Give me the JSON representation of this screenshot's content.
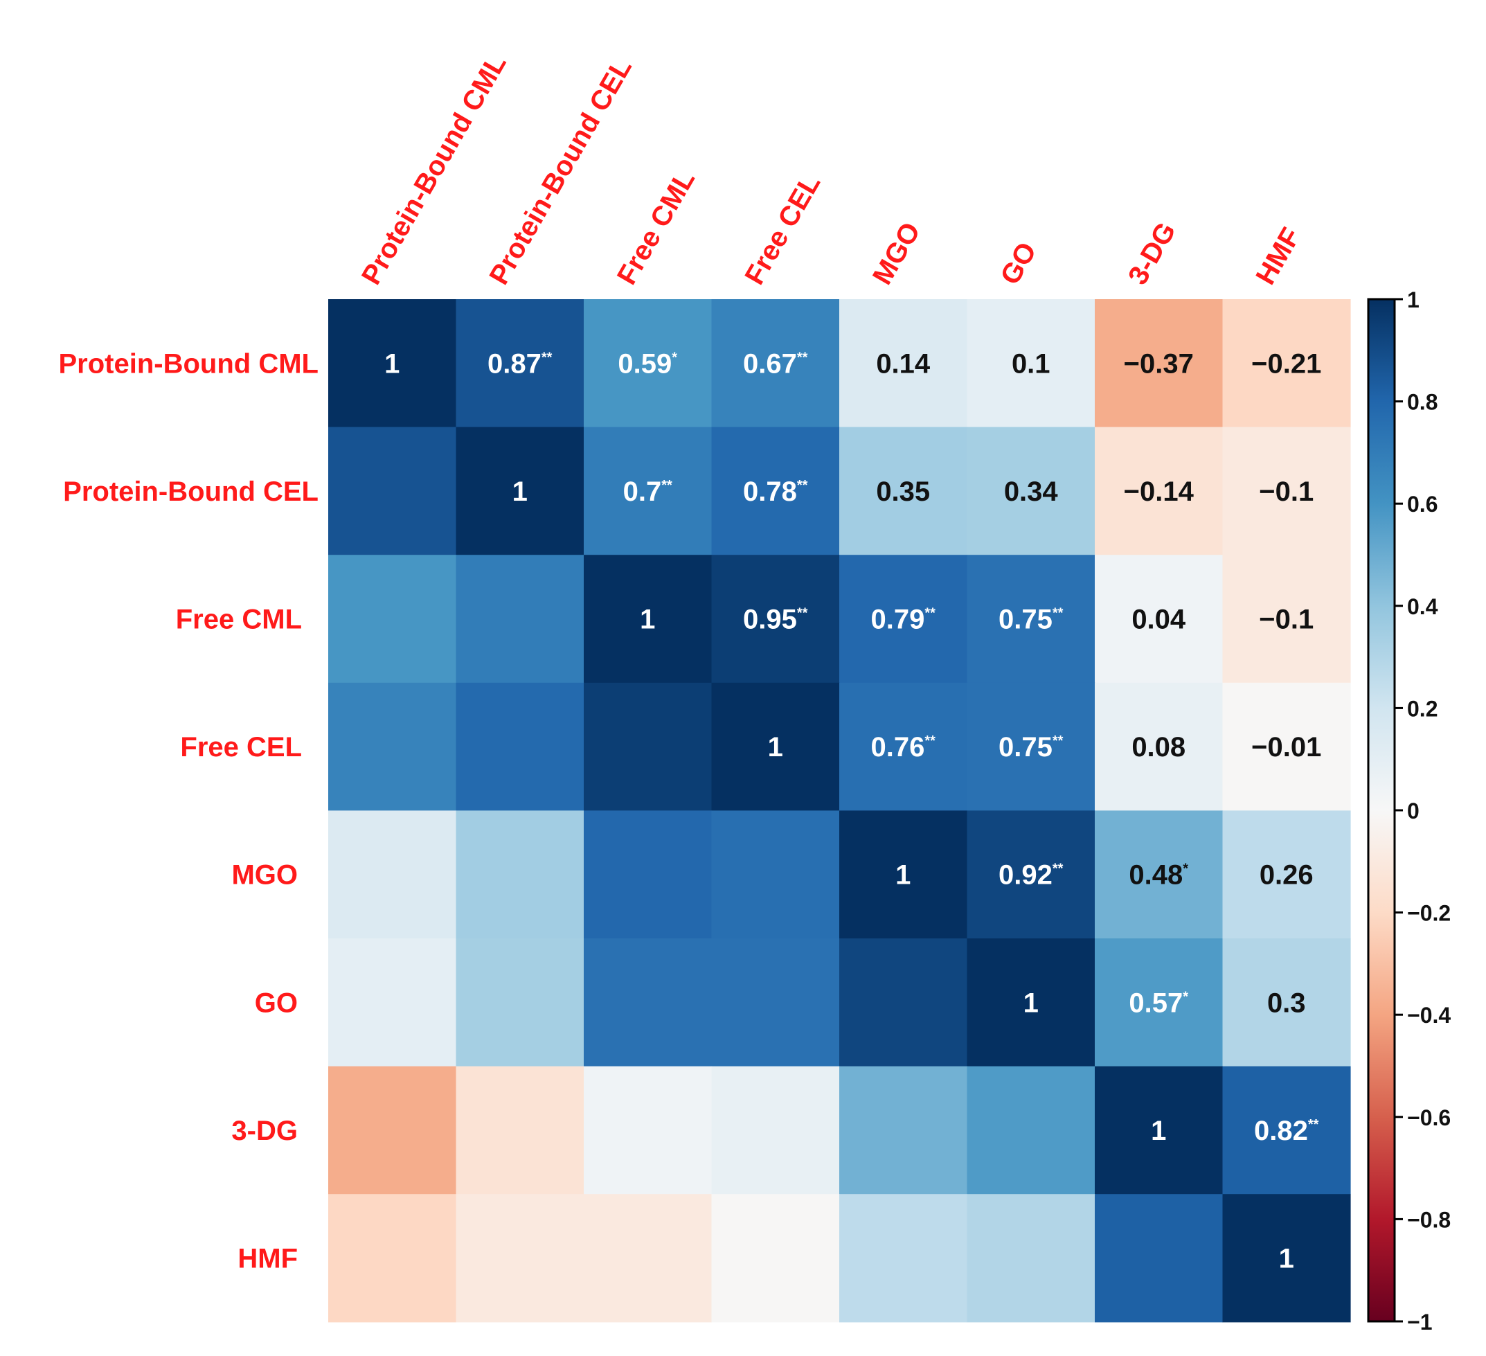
{
  "chart_data": {
    "type": "heatmap",
    "title": "",
    "variables": [
      "Protein-Bound CML",
      "Protein-Bound CEL",
      "Free CML",
      "Free CEL",
      "MGO",
      "GO",
      "3-DG",
      "HMF"
    ],
    "values": [
      [
        1,
        0.87,
        0.59,
        0.67,
        0.14,
        0.1,
        -0.37,
        -0.21
      ],
      [
        0.87,
        1,
        0.7,
        0.78,
        0.35,
        0.34,
        -0.14,
        -0.1
      ],
      [
        0.59,
        0.7,
        1,
        0.95,
        0.79,
        0.75,
        0.04,
        -0.1
      ],
      [
        0.67,
        0.78,
        0.95,
        1,
        0.76,
        0.75,
        0.08,
        -0.01
      ],
      [
        0.14,
        0.35,
        0.79,
        0.76,
        1,
        0.92,
        0.48,
        0.26
      ],
      [
        0.1,
        0.34,
        0.75,
        0.75,
        0.92,
        1,
        0.57,
        0.3
      ],
      [
        -0.37,
        -0.14,
        0.04,
        0.08,
        0.48,
        0.57,
        1,
        0.82
      ],
      [
        -0.21,
        -0.1,
        -0.1,
        -0.01,
        0.26,
        0.3,
        0.82,
        1
      ]
    ],
    "cell_labels": [
      [
        "1",
        "0.87",
        "0.59",
        "0.67",
        "0.14",
        "0.1",
        "−0.37",
        "−0.21"
      ],
      [
        "",
        "1",
        "0.7",
        "0.78",
        "0.35",
        "0.34",
        "−0.14",
        "−0.1"
      ],
      [
        "",
        "",
        "1",
        "0.95",
        "0.79",
        "0.75",
        "0.04",
        "−0.1"
      ],
      [
        "",
        "",
        "",
        "1",
        "0.76",
        "0.75",
        "0.08",
        "−0.01"
      ],
      [
        "",
        "",
        "",
        "",
        "1",
        "0.92",
        "0.48",
        "0.26"
      ],
      [
        "",
        "",
        "",
        "",
        "",
        "1",
        "0.57",
        "0.3"
      ],
      [
        "",
        "",
        "",
        "",
        "",
        "",
        "1",
        "0.82"
      ],
      [
        "",
        "",
        "",
        "",
        "",
        "",
        "",
        "1"
      ]
    ],
    "significance": [
      [
        "",
        "**",
        "*",
        "**",
        "",
        "",
        "",
        ""
      ],
      [
        "",
        "",
        "**",
        "**",
        "",
        "",
        "",
        ""
      ],
      [
        "",
        "",
        "",
        "**",
        "**",
        "**",
        "",
        ""
      ],
      [
        "",
        "",
        "",
        "",
        "**",
        "**",
        "",
        ""
      ],
      [
        "",
        "",
        "",
        "",
        "",
        "**",
        "*",
        ""
      ],
      [
        "",
        "",
        "",
        "",
        "",
        "",
        "*",
        ""
      ],
      [
        "",
        "",
        "",
        "",
        "",
        "",
        "",
        "**"
      ],
      [
        "",
        "",
        "",
        "",
        "",
        "",
        "",
        ""
      ]
    ],
    "colorbar": {
      "range": [
        -1,
        1
      ],
      "ticks": [
        1,
        0.8,
        0.6,
        0.4,
        0.2,
        0,
        -0.2,
        -0.4,
        -0.6,
        -0.8,
        -1
      ],
      "tick_labels": [
        "1",
        "0.8",
        "0.6",
        "0.4",
        "0.2",
        "0",
        "−0.2",
        "−0.4",
        "−0.6",
        "−0.8",
        "−1"
      ]
    },
    "colors": {
      "label_color": "#ff1a1a",
      "scale": [
        "#67001f",
        "#b2182b",
        "#d6604d",
        "#f4a582",
        "#fddbc7",
        "#f7f7f7",
        "#d1e5f0",
        "#92c5de",
        "#4393c3",
        "#2166ac",
        "#053061"
      ]
    }
  }
}
